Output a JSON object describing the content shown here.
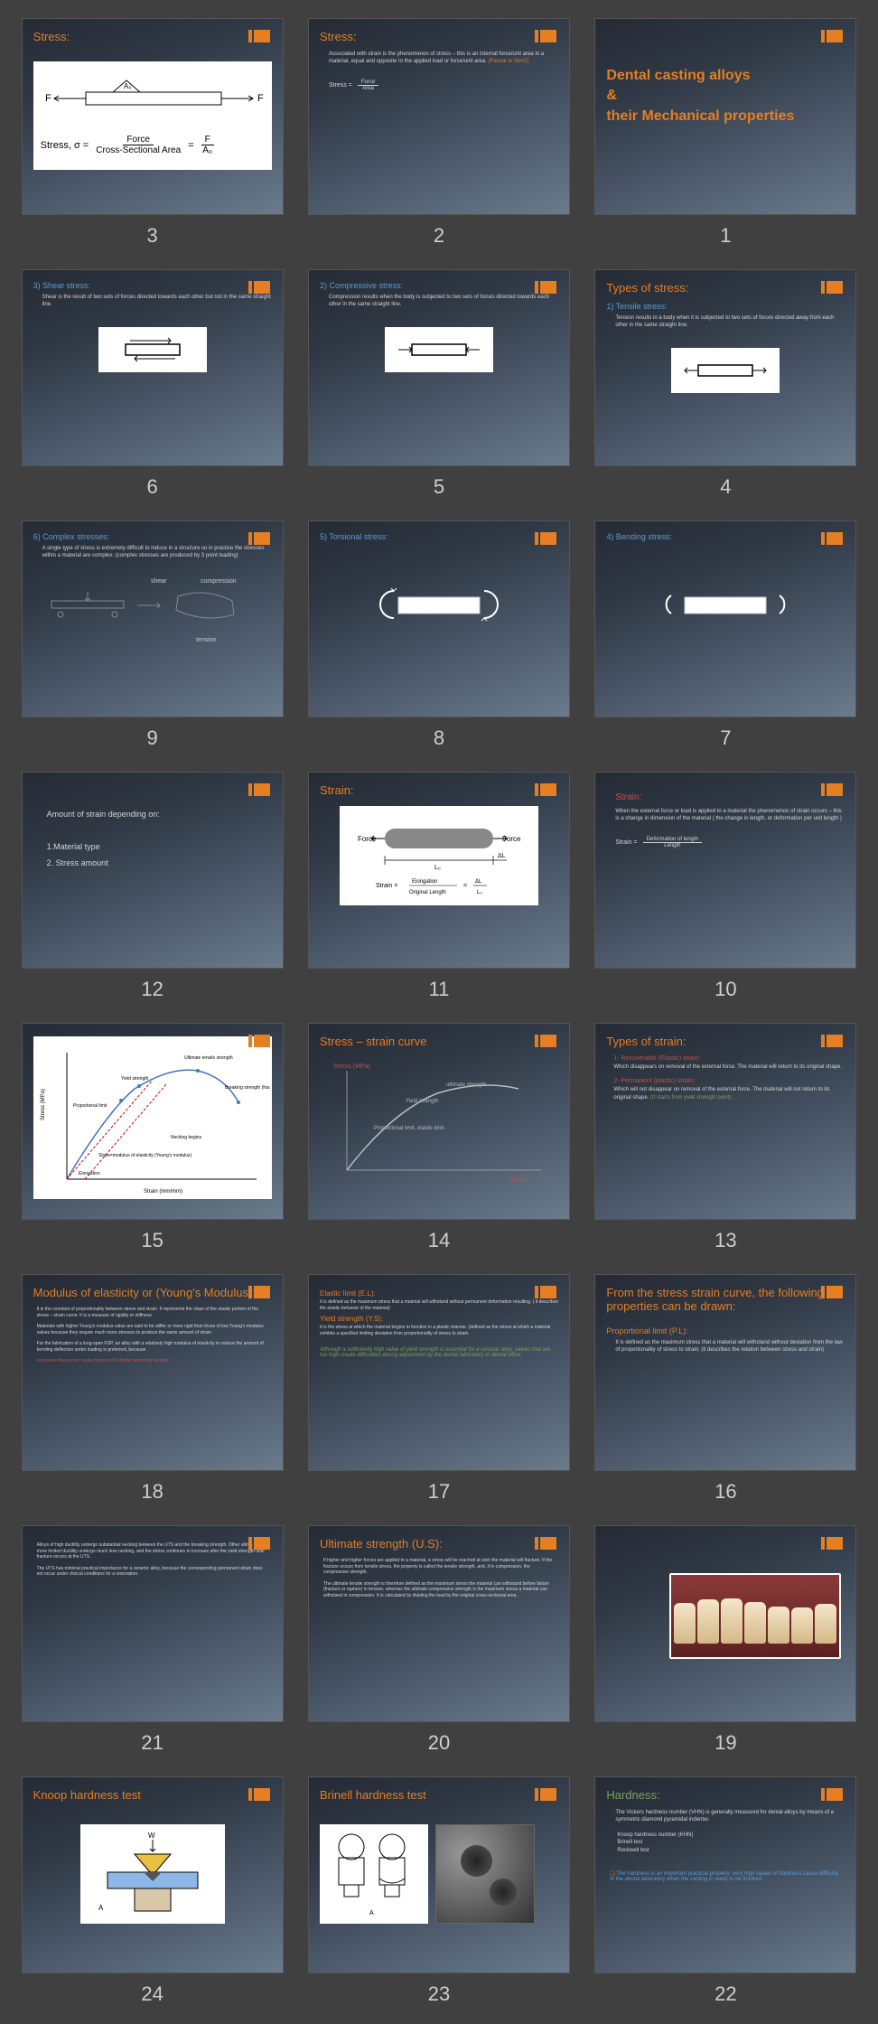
{
  "slides": [
    {
      "num": "3",
      "title": "Stress:",
      "type": "formula-big"
    },
    {
      "num": "2",
      "title": "Stress:",
      "body": "Associated with strain is the phenomenon of stress – this is an internal force/unit area in a material, equal and opposite to the applied load or force/unit area.",
      "unit": "(Pascal or N/m2)",
      "formula_label": "Stress =",
      "formula_top": "Force",
      "formula_bot": "Area"
    },
    {
      "num": "1",
      "title_big": "Dental casting alloys\n&\ntheir Mechanical properties"
    },
    {
      "num": "6",
      "sub": "3) Shear stress:",
      "body": "Shear is the result of two sets of forces directed towards each other but not in the same straight line.",
      "diagram": "shear"
    },
    {
      "num": "5",
      "sub": "2) Compressive stress:",
      "body": "Compression results when the body is subjected to two sets of forces directed towards each other in the same straight line.",
      "diagram": "compress"
    },
    {
      "num": "4",
      "title": "Types of stress:",
      "sub": "1) Tensile stress:",
      "body": "Tension results in a body when it is subjected to two sets of forces directed away from each other in the same straight line.",
      "diagram": "tension"
    },
    {
      "num": "9",
      "sub": "6) Complex stresses:",
      "body": "A single type of stress is extremely difficult to induce in a structure so in practice the stresses within a material are complex. (complex stresses are produced by 3 point loading)",
      "diagram": "complex"
    },
    {
      "num": "8",
      "sub": "5) Torsional stress:",
      "diagram": "torsion"
    },
    {
      "num": "7",
      "sub": "4) Bending stress:",
      "diagram": "bend"
    },
    {
      "num": "12",
      "body_lines": [
        "Amount of strain depending on:",
        "",
        "1.Material type",
        "2. Stress amount"
      ]
    },
    {
      "num": "11",
      "title": "Strain:",
      "diagram": "strain"
    },
    {
      "num": "10",
      "red_title": "Strain:",
      "body": "When the external force or load is applied to a material the phenomenon of strain occurs – this is a change in dimension of the material ( the change in length, or deformation per unit length )",
      "formula_label": "Strain =",
      "formula_top": "Deformation of length",
      "formula_bot": "Length"
    },
    {
      "num": "15",
      "diagram": "curve-big"
    },
    {
      "num": "14",
      "title": "Stress – strain curve",
      "diagram": "curve-small"
    },
    {
      "num": "13",
      "title": "Types of strain:",
      "items": [
        {
          "h": "1- Recoverable (Elastic) strain:",
          "t": "Which disappears on removal of the external force. The material will return to its original shape."
        },
        {
          "h": "2- Permanent (plastic) strain:",
          "t": "Which will not disappear on removal of the external force. The material will not return to its original shape.",
          "g": "(It starts from yield strength point)"
        }
      ]
    },
    {
      "num": "18",
      "title": "Modulus of elasticity or (Young's Modulus):",
      "paras": [
        "It is the constant of proportionality between stress and strain. It represents the slope of the elastic portion of the stress – strain curve. It is a measure of rigidity or stiffness",
        "Materials with higher Young's modulus value are said to be stiffer or more rigid than those of low Young's modulus values because they require much more stresses to produce the same amount of strain.",
        "For the fabrication of a long-span FDP, an alloy with a relatively high modulus of elasticity to reduce the amount of bending deflection under loading is preferred, because"
      ],
      "red_tail": "excessive flexure can cause fracture of a brittle veneering ceramic."
    },
    {
      "num": "17",
      "sections": [
        {
          "h": "Elastic limit (E.L):",
          "t": "It is defined as the maximum stress that a material will withstand without permanent deformation resulting. ( it describes the elastic behavior of the material)"
        },
        {
          "h": "Yield strength (Y.S):",
          "t": "It is the stress at which the material begins to function in a plastic manner. (defined as the stress at which a material exhibits a specified limiting deviation from proportionality of stress to strain."
        }
      ],
      "green_note": "Although a sufficiently high value of yield strength is essential for a ceramic alloy, values that are too high create difficulties during adjustment by the dental laboratory or dental office."
    },
    {
      "num": "16",
      "title": "From the stress strain curve, the following properties can be drawn:",
      "sub_h": "Proportional limit (P.L):",
      "body": "It is defined as the maximum stress that a material will withstand without deviation from the law of proportionality of stress to strain. (it describes the relation between stress and strain)"
    },
    {
      "num": "21",
      "paras": [
        "Alloys of high ductility undergo substantial necking between the UTS and the breaking strength. Other alloys of more limited ductility undergo much less necking, and the stress continues to increase after the yield strength until fracture occurs at the UTS.",
        "The UTS has minimal practical importance for a ceramic alloy, because the corresponding permanent strain does not occur under clinical conditions for a restoration."
      ]
    },
    {
      "num": "20",
      "title": "Ultimate strength (U.S):",
      "paras": [
        "If higher and higher forces are applied to a material, a stress will be reached at wich the material will fracture. If the fracture occurs from tensile stress, the property is called the tensile strength, and, if in compression, the compressive strength.",
        "The ultimate tensile strength is therefore defined as the maximum stress the material can withstand before failure (fracture or rupture) in tension, whereas the ultimate compressive strength is the maximum stress a material can withstand in compression. It is calculated by dividing the load by the original cross-sectional area."
      ]
    },
    {
      "num": "19",
      "diagram": "teeth"
    },
    {
      "num": "24",
      "title": "Knoop hardness test",
      "diagram": "knoop"
    },
    {
      "num": "23",
      "title": "Brinell hardness test",
      "diagram": "brinell"
    },
    {
      "num": "22",
      "green_title": "Hardness:",
      "body": "The Vickers hardness number (VHN) is generally measured for dental alloys by means of a symmetric diamond pyramidal indenter.",
      "list": [
        "Knoop hardness number (KHN)",
        "Brinell test",
        "Rockwell test"
      ],
      "note": "The hardness is an important practical property: very high values of hardness cause difficulty in the dental laboratory when the casting is ready to be finished."
    }
  ]
}
